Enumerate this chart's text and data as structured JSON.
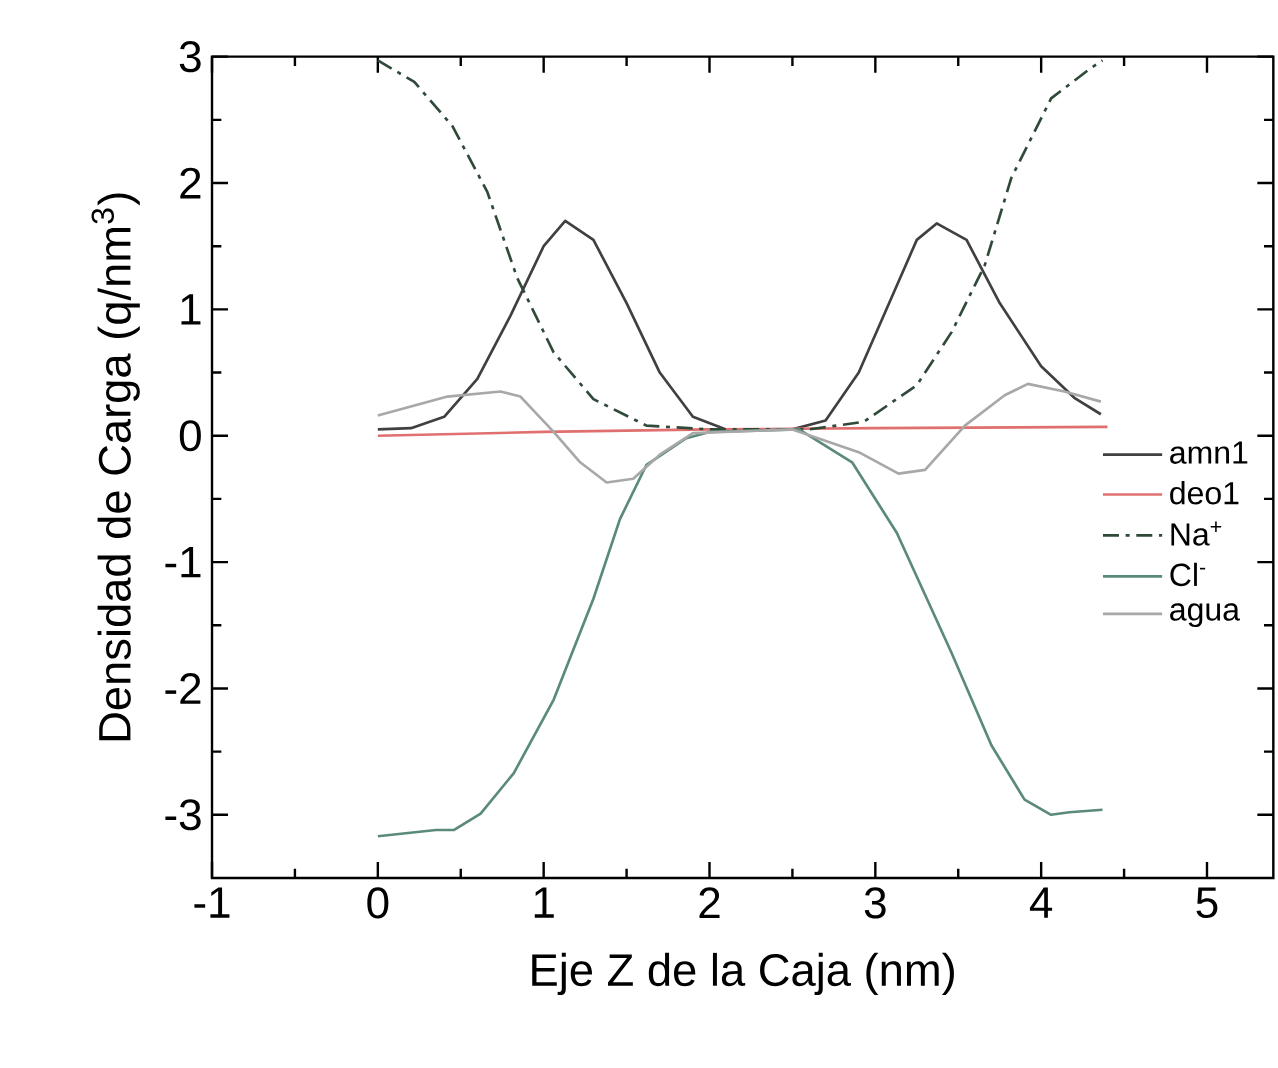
{
  "chart_data": {
    "type": "line",
    "xlabel": "Eje Z de la Caja (nm)",
    "ylabel": "Densidad de Carga (q/nm$^{3}$)",
    "xlim": [
      -1,
      5.4
    ],
    "ylim": [
      -3.5,
      3
    ],
    "xticks": [
      -1,
      0,
      1,
      2,
      3,
      4,
      5
    ],
    "yticks": [
      -3,
      -2,
      -1,
      0,
      1,
      2,
      3
    ],
    "legend": "right",
    "grid": false,
    "series": [
      {
        "name": "amn1",
        "color": "#404040",
        "line_style": "solid",
        "x": [
          0,
          0.2,
          0.4,
          0.6,
          0.8,
          1.0,
          1.13,
          1.3,
          1.5,
          1.7,
          1.9,
          2.1,
          2.5,
          2.7,
          2.9,
          3.1,
          3.25,
          3.37,
          3.55,
          3.75,
          4.0,
          4.2,
          4.36
        ],
        "values": [
          0.05,
          0.06,
          0.15,
          0.45,
          0.95,
          1.5,
          1.7,
          1.55,
          1.05,
          0.5,
          0.15,
          0.05,
          0.05,
          0.12,
          0.5,
          1.1,
          1.55,
          1.68,
          1.55,
          1.05,
          0.55,
          0.3,
          0.17
        ]
      },
      {
        "name": "deo1",
        "color": "#e07070",
        "line_style": "solid",
        "x": [
          0,
          1,
          2,
          3,
          4.4
        ],
        "values": [
          0.0,
          0.03,
          0.05,
          0.06,
          0.07
        ]
      },
      {
        "name": "Na$^{+}$",
        "color": "#304a3a",
        "line_style": "dashdot",
        "x": [
          0,
          0.22,
          0.45,
          0.66,
          0.84,
          1.06,
          1.3,
          1.62,
          2.0,
          2.6,
          2.93,
          3.25,
          3.46,
          3.66,
          3.82,
          4.06,
          4.3,
          4.37
        ],
        "values": [
          2.97,
          2.8,
          2.45,
          1.93,
          1.25,
          0.66,
          0.29,
          0.08,
          0.05,
          0.05,
          0.11,
          0.4,
          0.82,
          1.35,
          2.04,
          2.67,
          2.91,
          2.97
        ]
      },
      {
        "name": "Cl$^{-}$",
        "color": "#5a8a7a",
        "line_style": "solid",
        "x": [
          0,
          0.35,
          0.46,
          0.62,
          0.82,
          1.06,
          1.3,
          1.46,
          1.62,
          1.86,
          2.0,
          2.54,
          2.86,
          3.13,
          3.46,
          3.7,
          3.9,
          4.06,
          4.17,
          4.37
        ],
        "values": [
          -3.17,
          -3.12,
          -3.12,
          -2.99,
          -2.67,
          -2.09,
          -1.29,
          -0.66,
          -0.23,
          -0.02,
          0.03,
          0.05,
          -0.21,
          -0.77,
          -1.72,
          -2.45,
          -2.88,
          -3.0,
          -2.98,
          -2.96
        ]
      },
      {
        "name": "agua",
        "color": "#a8a8a8",
        "line_style": "solid",
        "x": [
          0,
          0.42,
          0.74,
          0.86,
          1.06,
          1.22,
          1.38,
          1.54,
          1.7,
          1.9,
          2.5,
          2.9,
          3.14,
          3.3,
          3.54,
          3.78,
          3.92,
          4.14,
          4.36
        ],
        "values": [
          0.16,
          0.31,
          0.35,
          0.31,
          0.03,
          -0.21,
          -0.37,
          -0.34,
          -0.15,
          0.02,
          0.05,
          -0.13,
          -0.3,
          -0.27,
          0.08,
          0.32,
          0.41,
          0.35,
          0.27
        ]
      }
    ]
  }
}
